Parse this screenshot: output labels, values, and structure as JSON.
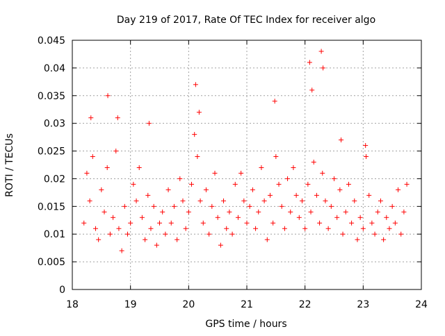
{
  "chart_data": {
    "type": "scatter",
    "title": "Day 219 of 2017, Rate Of TEC Index for receiver algo",
    "xlabel": "GPS time / hours",
    "ylabel": "ROTI / TECUs",
    "xlim": [
      18,
      24
    ],
    "ylim": [
      0,
      0.045
    ],
    "x_ticks": [
      18,
      19,
      20,
      21,
      22,
      23,
      24
    ],
    "x_tick_labels": [
      "18",
      "19",
      "20",
      "21",
      "22",
      "23",
      "24"
    ],
    "y_ticks": [
      0,
      0.005,
      0.01,
      0.015,
      0.02,
      0.025,
      0.03,
      0.035,
      0.04,
      0.045
    ],
    "y_tick_labels": [
      "0",
      "0.005",
      "0.01",
      "0.015",
      "0.02",
      "0.025",
      "0.03",
      "0.035",
      "0.04",
      "0.045"
    ],
    "grid": true,
    "marker": "+",
    "series": [
      {
        "name": "ROTI",
        "color": "#ff0000",
        "x": [
          18.2,
          18.25,
          18.3,
          18.35,
          18.4,
          18.45,
          18.5,
          18.55,
          18.6,
          18.65,
          18.7,
          18.75,
          18.8,
          18.85,
          18.9,
          18.95,
          19.0,
          19.05,
          19.1,
          19.15,
          19.2,
          19.25,
          19.3,
          19.35,
          19.4,
          19.45,
          19.5,
          19.55,
          19.6,
          19.65,
          19.7,
          19.75,
          19.8,
          19.85,
          19.9,
          19.95,
          20.0,
          20.05,
          20.1,
          20.15,
          20.2,
          20.25,
          20.3,
          20.35,
          20.4,
          20.45,
          20.5,
          20.55,
          20.6,
          20.65,
          20.7,
          20.75,
          20.8,
          20.85,
          20.9,
          20.95,
          21.0,
          21.05,
          21.1,
          21.15,
          21.2,
          21.25,
          21.3,
          21.35,
          21.4,
          21.45,
          21.5,
          21.55,
          21.6,
          21.65,
          21.7,
          21.75,
          21.8,
          21.85,
          21.9,
          21.95,
          22.0,
          22.05,
          22.1,
          22.15,
          22.2,
          22.25,
          22.3,
          22.35,
          22.4,
          22.45,
          22.5,
          22.55,
          22.6,
          22.65,
          22.7,
          22.75,
          22.8,
          22.85,
          22.9,
          22.95,
          23.0,
          23.05,
          23.1,
          23.15,
          23.2,
          23.25,
          23.3,
          23.35,
          23.4,
          23.45,
          23.5,
          23.55,
          23.6,
          23.65,
          23.7,
          23.75,
          18.32,
          18.61,
          18.78,
          19.32,
          20.12,
          20.18,
          21.48,
          22.08,
          22.12,
          22.28,
          22.31,
          22.62,
          23.04
        ],
        "y": [
          0.012,
          0.021,
          0.016,
          0.024,
          0.011,
          0.009,
          0.018,
          0.014,
          0.022,
          0.01,
          0.013,
          0.025,
          0.011,
          0.007,
          0.015,
          0.01,
          0.012,
          0.019,
          0.016,
          0.022,
          0.013,
          0.009,
          0.017,
          0.011,
          0.015,
          0.008,
          0.012,
          0.014,
          0.01,
          0.018,
          0.012,
          0.015,
          0.009,
          0.02,
          0.016,
          0.011,
          0.014,
          0.019,
          0.028,
          0.024,
          0.016,
          0.012,
          0.018,
          0.01,
          0.015,
          0.021,
          0.013,
          0.008,
          0.016,
          0.011,
          0.014,
          0.01,
          0.019,
          0.013,
          0.021,
          0.016,
          0.012,
          0.015,
          0.018,
          0.011,
          0.014,
          0.022,
          0.016,
          0.009,
          0.017,
          0.012,
          0.024,
          0.019,
          0.015,
          0.011,
          0.02,
          0.014,
          0.022,
          0.017,
          0.013,
          0.016,
          0.011,
          0.019,
          0.014,
          0.023,
          0.017,
          0.012,
          0.021,
          0.016,
          0.011,
          0.015,
          0.02,
          0.013,
          0.018,
          0.01,
          0.014,
          0.019,
          0.012,
          0.016,
          0.009,
          0.013,
          0.011,
          0.024,
          0.017,
          0.012,
          0.01,
          0.014,
          0.016,
          0.009,
          0.013,
          0.011,
          0.015,
          0.012,
          0.018,
          0.01,
          0.014,
          0.019,
          0.031,
          0.035,
          0.031,
          0.03,
          0.037,
          0.032,
          0.034,
          0.041,
          0.036,
          0.043,
          0.04,
          0.027,
          0.026
        ]
      }
    ],
    "notes": "Dense red '+' scatter of ROTI values; most points between 0.005 and 0.025 TECUs with spikes to ~0.044 near 22.3 h."
  }
}
